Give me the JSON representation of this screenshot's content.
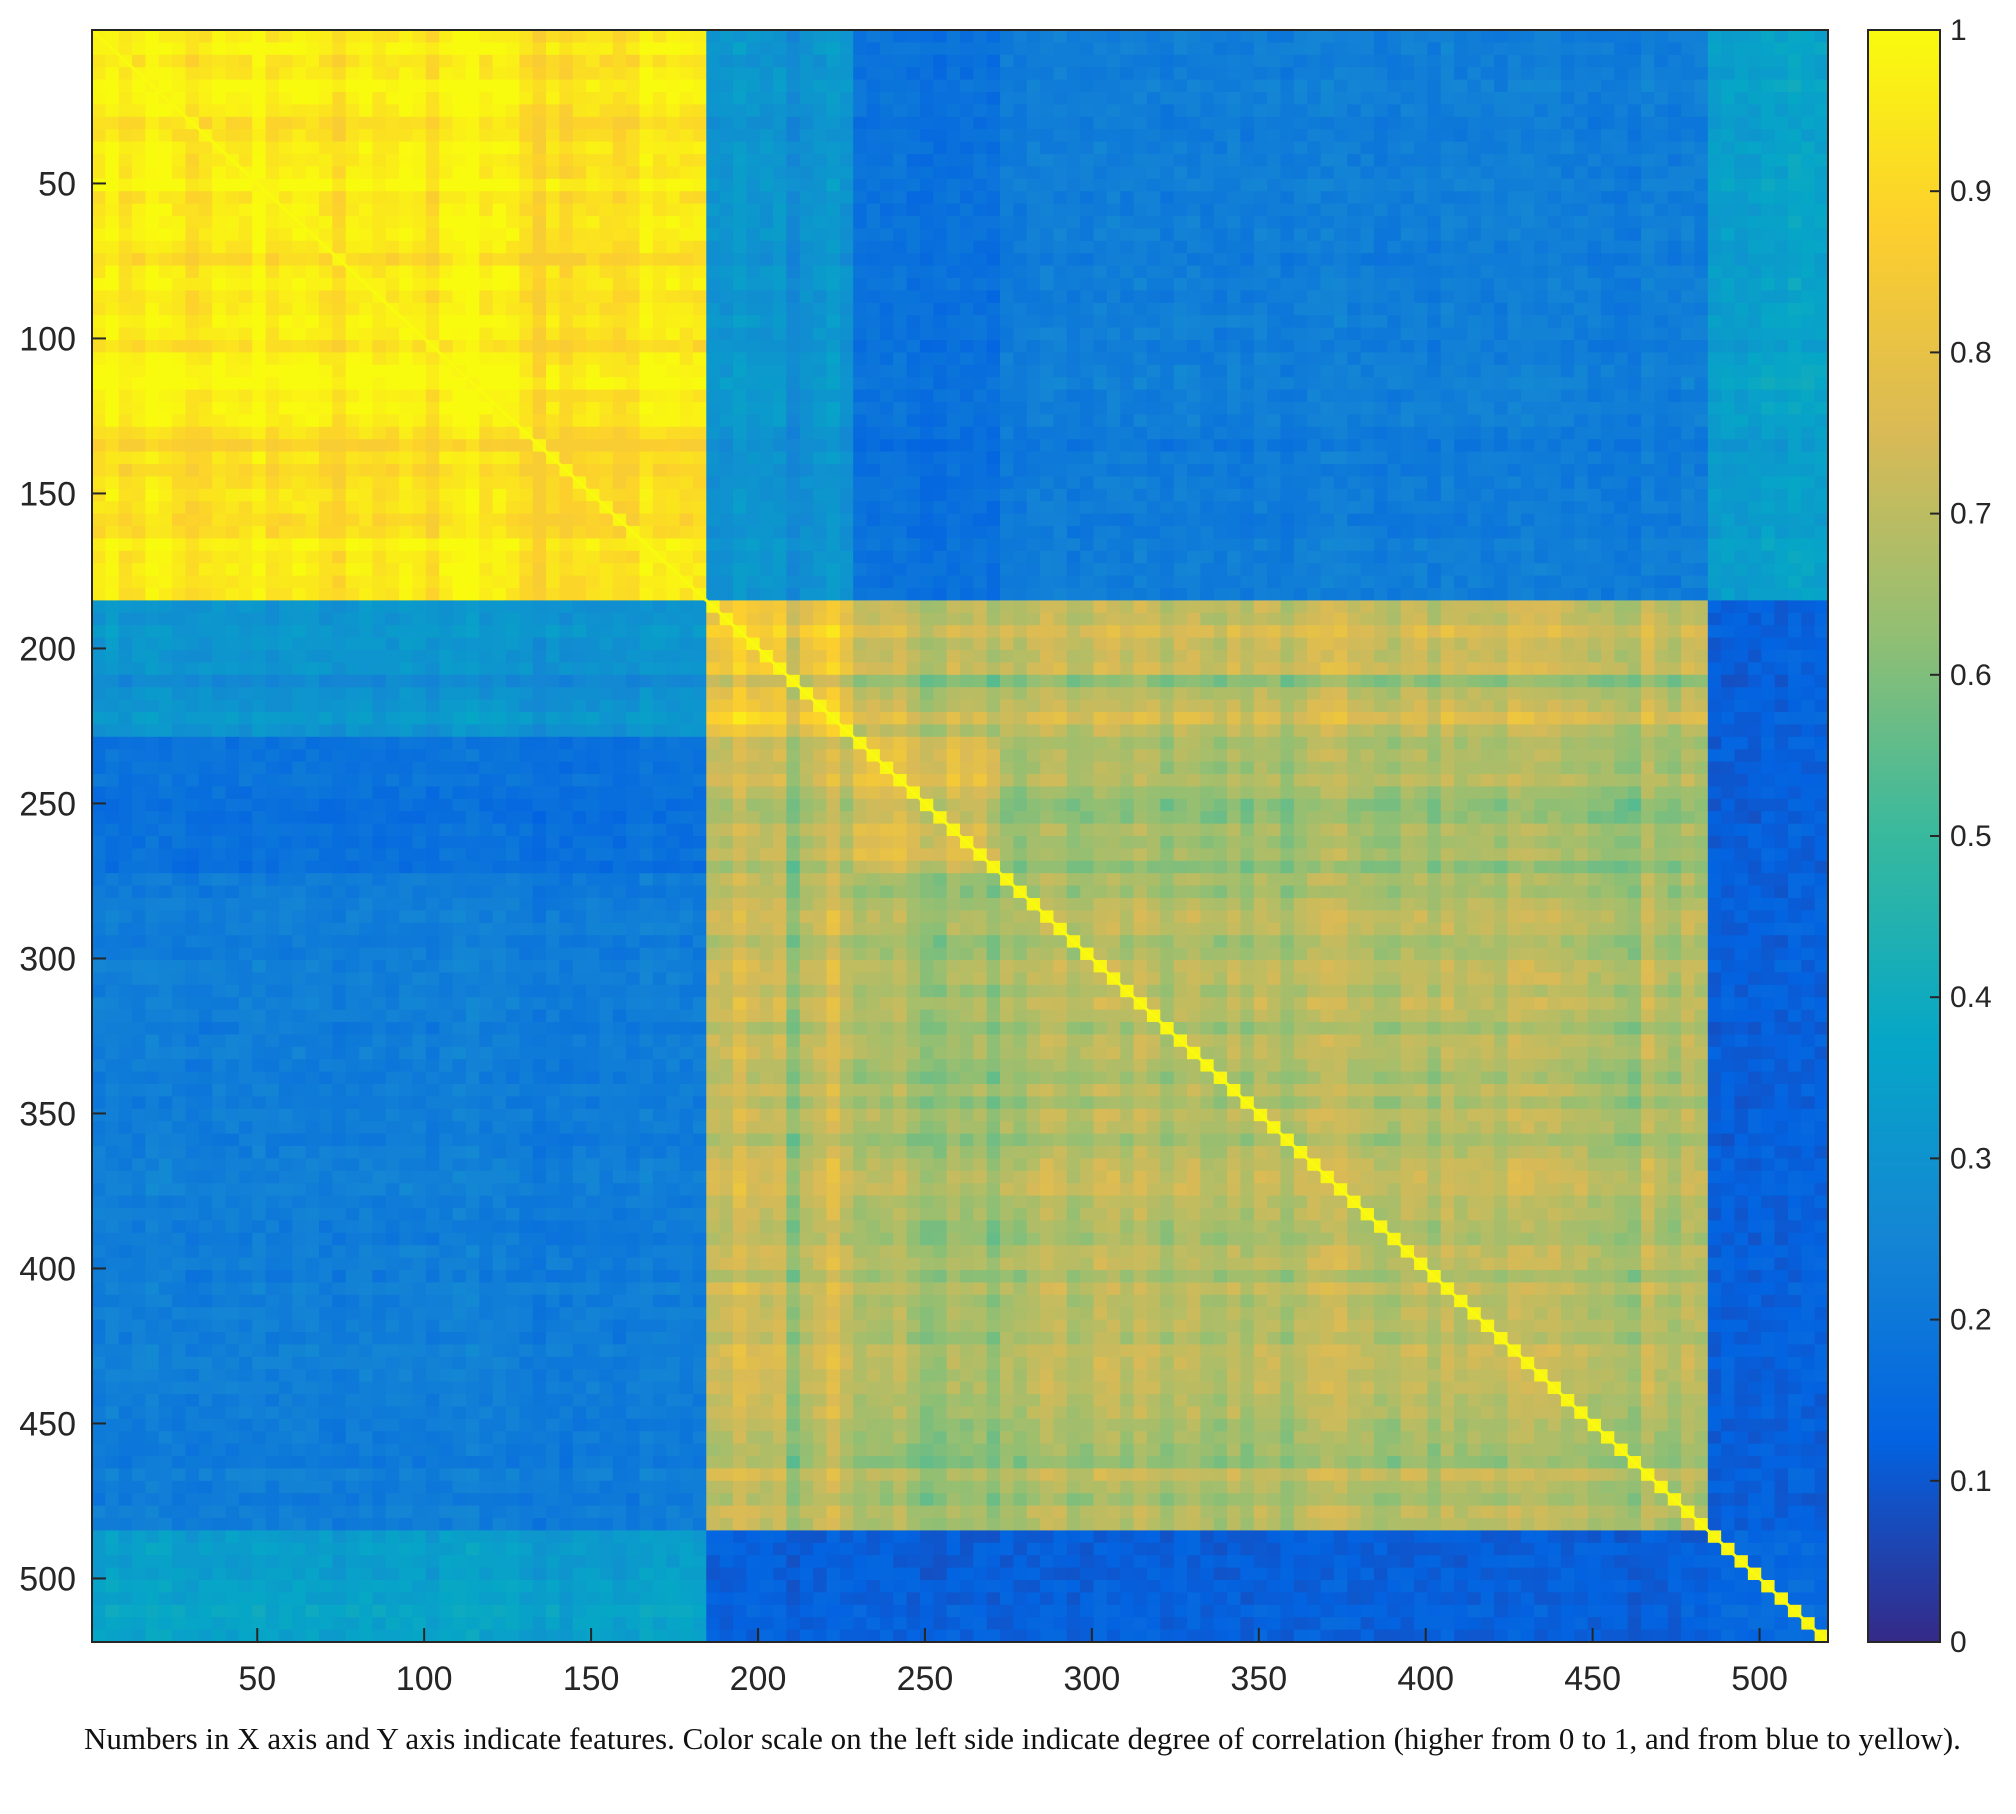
{
  "chart_data": {
    "type": "heatmap",
    "title": "",
    "xlabel": "",
    "ylabel": "",
    "matrix_size": 520,
    "x_ticks": [
      50,
      100,
      150,
      200,
      250,
      300,
      350,
      400,
      450,
      500
    ],
    "y_ticks": [
      50,
      100,
      150,
      200,
      250,
      300,
      350,
      400,
      450,
      500
    ],
    "colorbar": {
      "min": 0,
      "max": 1,
      "ticks": [
        0,
        0.1,
        0.2,
        0.3,
        0.4,
        0.5,
        0.6,
        0.7,
        0.8,
        0.9,
        1
      ],
      "colormap": "parula",
      "colors": [
        "#352a87",
        "#0363e1",
        "#1485d4",
        "#06a7c6",
        "#38b99e",
        "#92bf73",
        "#d9ba56",
        "#fcce2e",
        "#f9fb0e"
      ]
    },
    "groups": [
      {
        "start": 1,
        "end": 183,
        "within_correlation": 0.95
      },
      {
        "start": 184,
        "end": 227,
        "within_correlation": 0.8
      },
      {
        "start": 228,
        "end": 270,
        "within_correlation": 0.78
      },
      {
        "start": 271,
        "end": 484,
        "within_correlation": 0.68
      },
      {
        "start": 485,
        "end": 520,
        "within_correlation": 0.15
      }
    ],
    "between_group_correlation": [
      [
        0.95,
        0.3,
        0.18,
        0.22,
        0.35
      ],
      [
        0.3,
        0.8,
        0.7,
        0.7,
        0.12
      ],
      [
        0.18,
        0.7,
        0.78,
        0.66,
        0.12
      ],
      [
        0.22,
        0.7,
        0.66,
        0.68,
        0.12
      ],
      [
        0.35,
        0.12,
        0.12,
        0.12,
        0.15
      ]
    ],
    "diagonal_value": 1
  },
  "caption": "Numbers in X axis and Y axis indicate features. Color scale on the left side indicate degree of correlation (higher from 0 to 1, and from blue to yellow)."
}
